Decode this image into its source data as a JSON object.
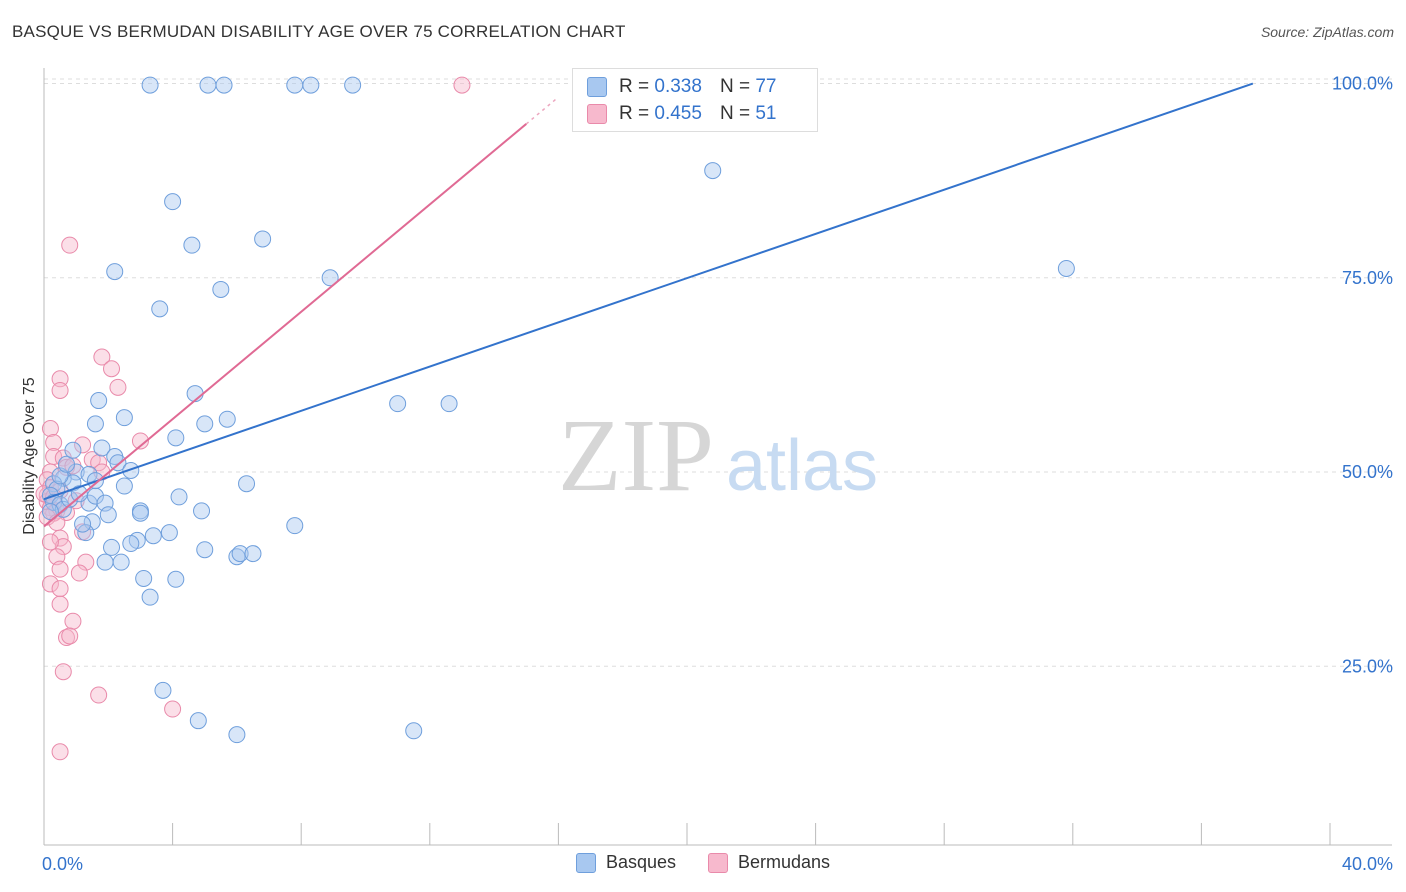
{
  "title": "BASQUE VS BERMUDAN DISABILITY AGE OVER 75 CORRELATION CHART",
  "source": "Source: ZipAtlas.com",
  "colors": {
    "blue": "#a8c8f0",
    "blue_stroke": "#6f9fdc",
    "blue_line": "#3373cc",
    "pink": "#f7b9cd",
    "pink_stroke": "#e98aaa",
    "pink_line": "#e06a94",
    "tick_label": "#3373cc",
    "grid": "#dddddd"
  },
  "legend": {
    "series": [
      {
        "r_label": "R =",
        "r_value": "0.338",
        "n_label": "N =",
        "n_value": "77"
      },
      {
        "r_label": "R =",
        "r_value": "0.455",
        "n_label": "N =",
        "n_value": "51"
      }
    ],
    "bottom": [
      "Basques",
      "Bermudans"
    ]
  },
  "watermark": {
    "zip": "ZIP",
    "atlas": "atlas"
  },
  "chart_data": {
    "type": "scatter",
    "title": "BASQUE VS BERMUDAN DISABILITY AGE OVER 75 CORRELATION CHART",
    "xlabel": "",
    "ylabel": "Disability Age Over 75",
    "xlim": [
      0,
      40
    ],
    "ylim": [
      2,
      102
    ],
    "x_tick_labels": [
      {
        "value": 0,
        "label": "0.0%"
      },
      {
        "value": 40,
        "label": "40.0%"
      }
    ],
    "y_tick_labels": [
      {
        "value": 25,
        "label": "25.0%"
      },
      {
        "value": 50,
        "label": "50.0%"
      },
      {
        "value": 75,
        "label": "75.0%"
      },
      {
        "value": 100,
        "label": "100.0%"
      }
    ],
    "x_minor_ticks": [
      4,
      8,
      12,
      16,
      20,
      24,
      28,
      32,
      36,
      40
    ],
    "series": [
      {
        "name": "Basques",
        "r": 0.338,
        "n": 77,
        "trend": {
          "x0": 0,
          "y0": 46.5,
          "x1": 37.6,
          "y1": 100
        },
        "points": [
          [
            3.3,
            99.8
          ],
          [
            5.1,
            99.8
          ],
          [
            5.6,
            99.8
          ],
          [
            7.8,
            99.8
          ],
          [
            8.3,
            99.8
          ],
          [
            9.6,
            99.8
          ],
          [
            20.8,
            88.8
          ],
          [
            4.0,
            84.8
          ],
          [
            4.6,
            79.2
          ],
          [
            6.8,
            80.0
          ],
          [
            2.2,
            75.8
          ],
          [
            8.9,
            75.0
          ],
          [
            5.5,
            73.5
          ],
          [
            31.8,
            76.2
          ],
          [
            3.6,
            71.0
          ],
          [
            1.7,
            59.2
          ],
          [
            4.7,
            60.1
          ],
          [
            11.0,
            58.8
          ],
          [
            12.6,
            58.8
          ],
          [
            1.6,
            56.2
          ],
          [
            2.5,
            57.0
          ],
          [
            5.0,
            56.2
          ],
          [
            5.7,
            56.8
          ],
          [
            4.1,
            54.4
          ],
          [
            1.8,
            53.1
          ],
          [
            2.2,
            52.0
          ],
          [
            2.3,
            51.2
          ],
          [
            2.7,
            50.2
          ],
          [
            1.0,
            50.0
          ],
          [
            1.4,
            49.7
          ],
          [
            0.6,
            49.2
          ],
          [
            0.9,
            48.6
          ],
          [
            0.3,
            48.5
          ],
          [
            0.4,
            47.8
          ],
          [
            0.2,
            47.0
          ],
          [
            0.3,
            46.1
          ],
          [
            0.5,
            45.8
          ],
          [
            0.6,
            45.2
          ],
          [
            1.4,
            46.0
          ],
          [
            1.6,
            46.9
          ],
          [
            1.9,
            46.0
          ],
          [
            2.5,
            48.2
          ],
          [
            3.0,
            45.0
          ],
          [
            4.2,
            46.8
          ],
          [
            4.9,
            45.0
          ],
          [
            6.3,
            48.5
          ],
          [
            7.8,
            43.1
          ],
          [
            1.5,
            43.6
          ],
          [
            1.3,
            42.2
          ],
          [
            2.9,
            41.2
          ],
          [
            2.7,
            40.8
          ],
          [
            3.4,
            41.8
          ],
          [
            5.0,
            40.0
          ],
          [
            6.0,
            39.1
          ],
          [
            6.1,
            39.5
          ],
          [
            6.5,
            39.5
          ],
          [
            1.9,
            38.4
          ],
          [
            2.4,
            38.4
          ],
          [
            3.1,
            36.3
          ],
          [
            4.1,
            36.2
          ],
          [
            3.3,
            33.9
          ],
          [
            3.7,
            21.9
          ],
          [
            4.8,
            18.0
          ],
          [
            6.0,
            16.2
          ],
          [
            11.5,
            16.7
          ],
          [
            0.8,
            46.5
          ],
          [
            1.1,
            47.2
          ],
          [
            0.5,
            49.5
          ],
          [
            1.2,
            43.3
          ],
          [
            2.0,
            44.5
          ],
          [
            3.0,
            44.7
          ],
          [
            0.7,
            51.0
          ],
          [
            0.9,
            52.8
          ],
          [
            1.6,
            48.9
          ],
          [
            0.2,
            44.9
          ],
          [
            3.9,
            42.2
          ],
          [
            2.1,
            40.3
          ]
        ]
      },
      {
        "name": "Bermudans",
        "r": 0.455,
        "n": 51,
        "trend": {
          "x0": 0,
          "y0": 43.0,
          "x1": 15.0,
          "y1": 94.8,
          "dash_to_x": 16.0
        },
        "points": [
          [
            13.0,
            99.8
          ],
          [
            0.8,
            79.2
          ],
          [
            1.8,
            64.8
          ],
          [
            2.1,
            63.3
          ],
          [
            0.5,
            62.0
          ],
          [
            2.3,
            60.9
          ],
          [
            0.5,
            60.5
          ],
          [
            0.2,
            55.6
          ],
          [
            0.3,
            53.8
          ],
          [
            1.2,
            53.5
          ],
          [
            3.0,
            54.0
          ],
          [
            0.3,
            52.0
          ],
          [
            0.6,
            51.8
          ],
          [
            1.5,
            51.6
          ],
          [
            1.7,
            51.2
          ],
          [
            0.7,
            50.6
          ],
          [
            0.2,
            50.0
          ],
          [
            1.8,
            50.0
          ],
          [
            0.1,
            49.0
          ],
          [
            0.2,
            48.0
          ],
          [
            0.5,
            47.6
          ],
          [
            0.1,
            47.0
          ],
          [
            0.1,
            46.2
          ],
          [
            0.2,
            45.4
          ],
          [
            0.4,
            45.0
          ],
          [
            0.3,
            44.7
          ],
          [
            0.7,
            44.8
          ],
          [
            1.2,
            42.3
          ],
          [
            0.5,
            41.5
          ],
          [
            0.6,
            40.4
          ],
          [
            0.4,
            39.1
          ],
          [
            1.3,
            38.4
          ],
          [
            0.5,
            37.5
          ],
          [
            1.1,
            37.0
          ],
          [
            0.2,
            35.6
          ],
          [
            0.5,
            35.0
          ],
          [
            0.5,
            33.0
          ],
          [
            0.9,
            30.8
          ],
          [
            0.7,
            28.7
          ],
          [
            0.8,
            28.9
          ],
          [
            0.6,
            24.3
          ],
          [
            1.7,
            21.3
          ],
          [
            4.0,
            19.5
          ],
          [
            0.5,
            14.0
          ],
          [
            0.0,
            47.2
          ],
          [
            0.3,
            46.8
          ],
          [
            0.1,
            44.2
          ],
          [
            0.9,
            50.8
          ],
          [
            0.4,
            43.5
          ],
          [
            1.0,
            46.3
          ],
          [
            0.2,
            41.0
          ]
        ]
      }
    ]
  }
}
